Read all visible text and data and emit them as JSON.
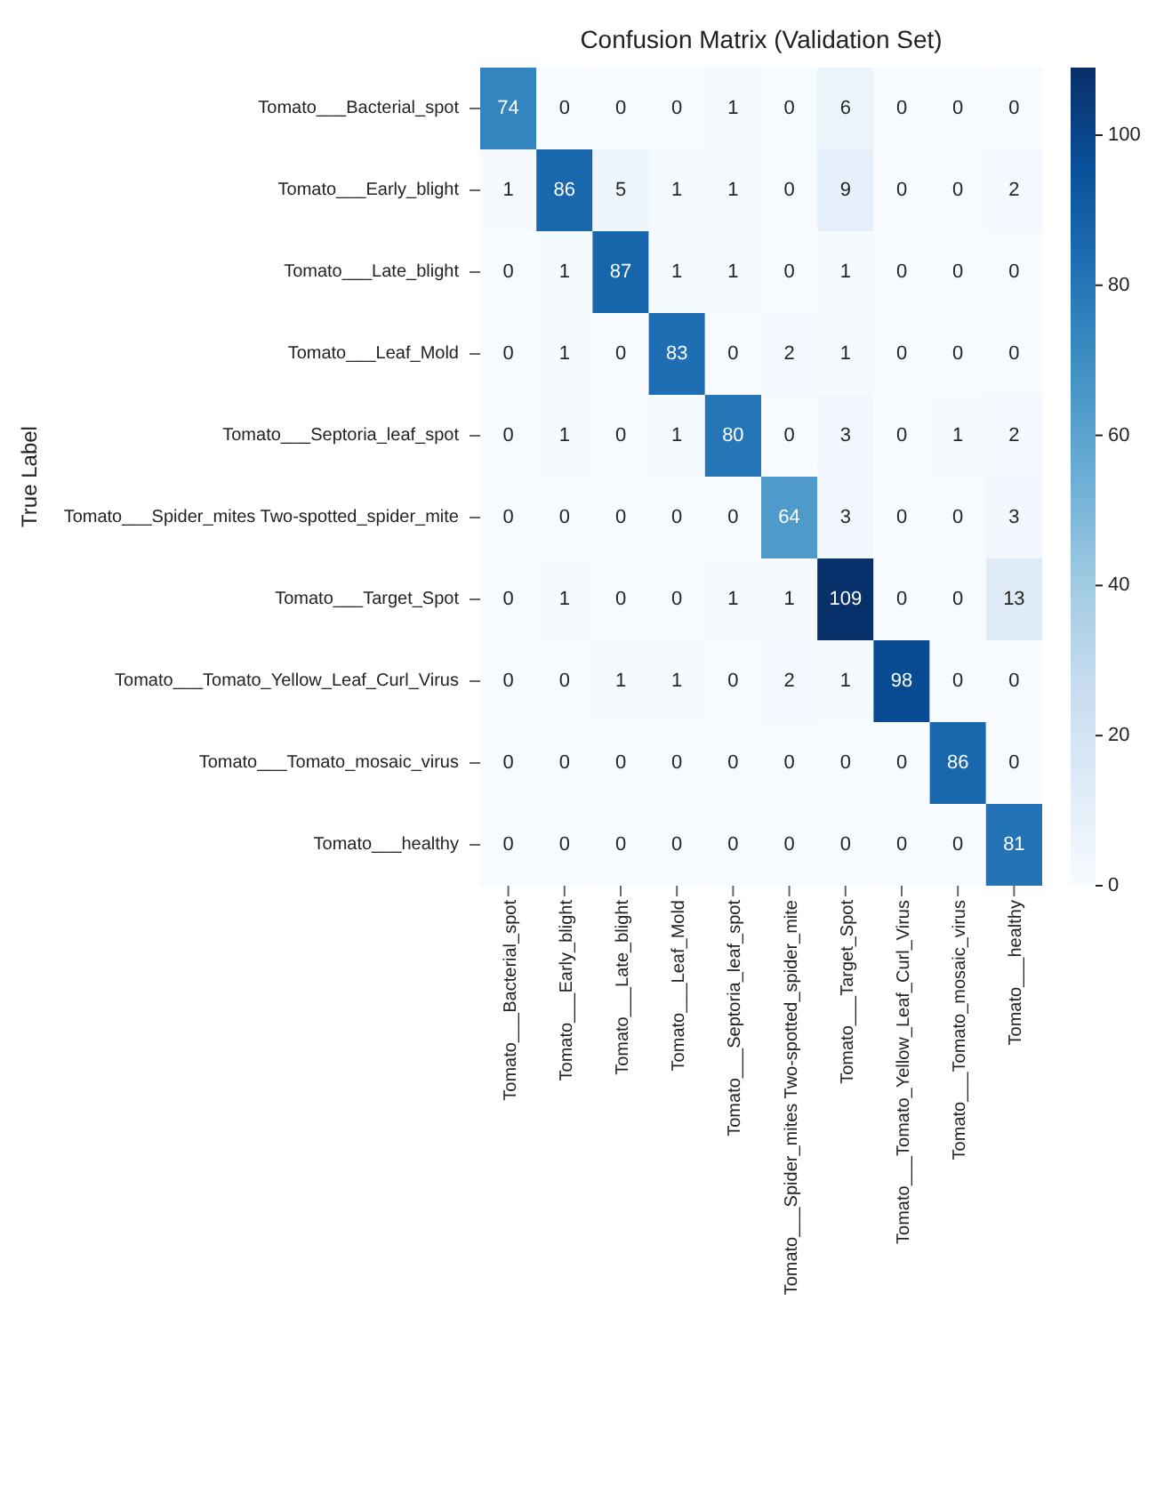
{
  "chart_data": {
    "type": "heatmap",
    "title": "Confusion Matrix (Validation Set)",
    "ylabel": "True Label",
    "categories": [
      "Tomato___Bacterial_spot",
      "Tomato___Early_blight",
      "Tomato___Late_blight",
      "Tomato___Leaf_Mold",
      "Tomato___Septoria_leaf_spot",
      "Tomato___Spider_mites Two-spotted_spider_mite",
      "Tomato___Target_Spot",
      "Tomato___Tomato_Yellow_Leaf_Curl_Virus",
      "Tomato___Tomato_mosaic_virus",
      "Tomato___healthy"
    ],
    "y_categories": [
      "Tomato___Bacterial_spot",
      "Tomato___Early_blight",
      "Tomato___Late_blight",
      "Tomato___Leaf_Mold",
      "Tomato___Septoria_leaf_spot",
      "Tomato___Spider_mites Two-spotted_spider_mite",
      "Tomato___Target_Spot",
      "Tomato___Tomato_Yellow_Leaf_Curl_Virus",
      "Tomato___Tomato_mosaic_virus",
      "Tomato___healthy"
    ],
    "cells": [
      [
        74,
        0,
        0,
        0,
        1,
        0,
        6,
        0,
        0,
        0
      ],
      [
        1,
        86,
        5,
        1,
        1,
        0,
        9,
        0,
        0,
        2
      ],
      [
        0,
        1,
        87,
        1,
        1,
        0,
        1,
        0,
        0,
        0
      ],
      [
        0,
        1,
        0,
        83,
        0,
        2,
        1,
        0,
        0,
        0
      ],
      [
        0,
        1,
        0,
        1,
        80,
        0,
        3,
        0,
        1,
        2
      ],
      [
        0,
        0,
        0,
        0,
        0,
        64,
        3,
        0,
        0,
        3
      ],
      [
        0,
        1,
        0,
        0,
        1,
        1,
        109,
        0,
        0,
        13
      ],
      [
        0,
        0,
        1,
        1,
        0,
        2,
        1,
        98,
        0,
        0
      ],
      [
        0,
        0,
        0,
        0,
        0,
        0,
        0,
        0,
        86,
        0
      ],
      [
        0,
        0,
        0,
        0,
        0,
        0,
        0,
        0,
        0,
        81
      ]
    ],
    "clim": [
      0,
      109
    ],
    "cticks": [
      0,
      20,
      40,
      60,
      80,
      100
    ],
    "data_labels": true
  }
}
